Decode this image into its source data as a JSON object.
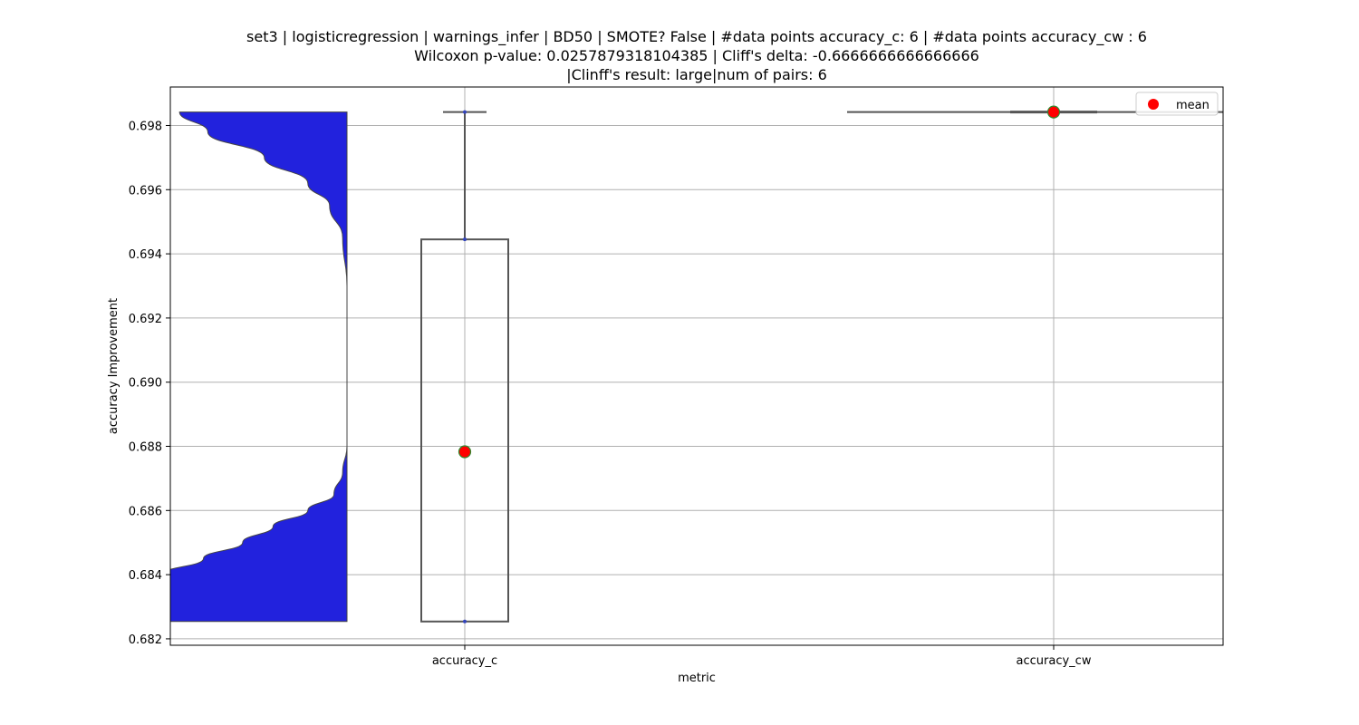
{
  "chart_data": {
    "type": "raincloud",
    "title_lines": [
      "set3 | logisticregression | warnings_infer | BD50 | SMOTE? False | #data points accuracy_c: 6 | #data points accuracy_cw : 6",
      "Wilcoxon p-value: 0.0257879318104385 | Cliff's delta: -0.6666666666666666",
      "|Clinff's result: large|num of pairs: 6"
    ],
    "xlabel": "metric",
    "ylabel": "accuracy Improvement",
    "categories": [
      "accuracy_c",
      "accuracy_cw"
    ],
    "ylim": [
      0.6818,
      0.6992
    ],
    "yticks": [
      0.682,
      0.684,
      0.686,
      0.688,
      0.69,
      0.692,
      0.694,
      0.696,
      0.698
    ],
    "ytick_labels": [
      "0.682",
      "0.684",
      "0.686",
      "0.688",
      "0.690",
      "0.692",
      "0.694",
      "0.696",
      "0.698"
    ],
    "grid": true,
    "legend": {
      "position": "top-right",
      "entries": [
        {
          "label": "mean",
          "marker": "red-dot"
        }
      ]
    },
    "boxes": [
      {
        "category": "accuracy_c",
        "min": 0.68254,
        "q1": 0.68254,
        "median": 0.68254,
        "q3": 0.69445,
        "max": 0.69842,
        "mean": 0.68783
      },
      {
        "category": "accuracy_cw",
        "min": 0.69842,
        "q1": 0.69842,
        "median": 0.69842,
        "q3": 0.69842,
        "max": 0.69842,
        "mean": 0.69842
      }
    ],
    "violin": {
      "category": "accuracy_c",
      "side": "left",
      "color": "#2222dd",
      "ymin": 0.68254,
      "ymax": 0.69842,
      "density_profile": [
        [
          0.68254,
          1.0
        ],
        [
          0.6834,
          1.0
        ],
        [
          0.684,
          0.85
        ],
        [
          0.6845,
          0.66
        ],
        [
          0.685,
          0.48
        ],
        [
          0.6855,
          0.34
        ],
        [
          0.686,
          0.18
        ],
        [
          0.6865,
          0.06
        ],
        [
          0.6872,
          0.02
        ],
        [
          0.688,
          0.0
        ],
        [
          0.693,
          0.0
        ],
        [
          0.6945,
          0.02
        ],
        [
          0.6955,
          0.08
        ],
        [
          0.6962,
          0.18
        ],
        [
          0.697,
          0.38
        ],
        [
          0.6978,
          0.64
        ],
        [
          0.69842,
          0.77
        ]
      ]
    },
    "colors": {
      "violin_fill": "#2222dd",
      "box_edge": "#555555",
      "mean_fill": "#ff0000",
      "mean_edge": "#2e8b2e",
      "grid": "#b0b0b0"
    }
  }
}
